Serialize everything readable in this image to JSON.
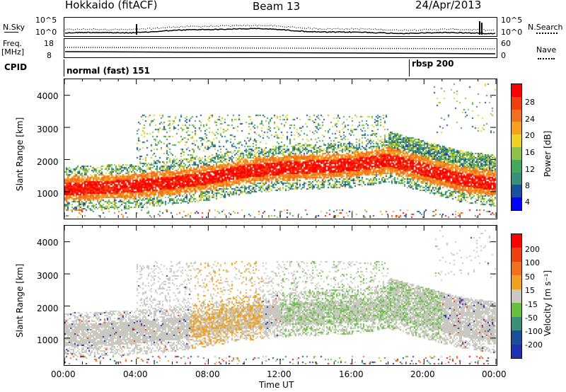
{
  "header": {
    "station": "Hokkaido (fitACF)",
    "beam": "Beam 13",
    "date": "24/Apr/2013"
  },
  "sky_panel": {
    "label": "N.Sky",
    "right_label": "N.Search",
    "ytick_top": "10^5",
    "ytick_bottom": "10^0",
    "right_ytick_top": "10^5",
    "right_ytick_bottom": "10^0"
  },
  "freq_panel": {
    "label_line1": "Freq.",
    "label_line2": "[MHz]",
    "ytick_top": "18",
    "ytick_bottom": "8",
    "right_label": "Nave",
    "right_ytick_top": "60",
    "right_ytick_bottom": "0"
  },
  "cpid": {
    "label": "CPID",
    "modes": [
      {
        "name": "normal (fast) 151",
        "start": "00:00"
      },
      {
        "name": "rbsp 200",
        "start": "19:35"
      }
    ]
  },
  "power_panel": {
    "ylabel": "Slant Range [km]",
    "yticks": [
      "4000",
      "3000",
      "2000",
      "1000"
    ],
    "colorbar_label": "Power [dB]",
    "colorbar_ticks": [
      "28",
      "24",
      "20",
      "16",
      "12",
      "8",
      "4"
    ],
    "colors": [
      "#0000ff",
      "#1a4fa0",
      "#3a8f7a",
      "#44a85a",
      "#8fc14a",
      "#f0d020",
      "#f5a020",
      "#f07020",
      "#f04010",
      "#ff0000"
    ]
  },
  "velocity_panel": {
    "ylabel": "Slant Range [km]",
    "yticks": [
      "4000",
      "3000",
      "2000",
      "1000"
    ],
    "colorbar_label": "Velocity [m s⁻¹]",
    "colorbar_ticks": [
      "200",
      "100",
      "50",
      "15",
      "-15",
      "-50",
      "-100",
      "-200"
    ],
    "colors": [
      "#2030b0",
      "#1a4f9a",
      "#3a8f7a",
      "#66c040",
      "#c8c8c0",
      "#f0a020",
      "#f07020",
      "#f04010",
      "#ff0000"
    ]
  },
  "xaxis": {
    "label": "Time UT",
    "ticks": [
      "00:00",
      "04:00",
      "08:00",
      "12:00",
      "16:00",
      "20:00",
      "00:00"
    ]
  },
  "chart_data": [
    {
      "type": "heatmap",
      "title": "Power",
      "xlabel": "Time UT",
      "ylabel": "Slant Range [km]",
      "x_range_hours": [
        0,
        24
      ],
      "ylim": [
        180,
        4500
      ],
      "colorbar_range": [
        0,
        30
      ],
      "echo_band_center_km": [
        [
          0,
          1100
        ],
        [
          2,
          1150
        ],
        [
          4,
          1200
        ],
        [
          6,
          1300
        ],
        [
          8,
          1450
        ],
        [
          10,
          1650
        ],
        [
          12,
          1750
        ],
        [
          14,
          1800
        ],
        [
          16,
          1850
        ],
        [
          18,
          2000
        ],
        [
          20,
          1700
        ],
        [
          22,
          1400
        ],
        [
          24,
          1250
        ]
      ]
    },
    {
      "type": "heatmap",
      "title": "Velocity",
      "xlabel": "Time UT",
      "ylabel": "Slant Range [km]",
      "x_range_hours": [
        0,
        24
      ],
      "ylim": [
        180,
        4500
      ],
      "colorbar_range": [
        -250,
        250
      ]
    }
  ]
}
